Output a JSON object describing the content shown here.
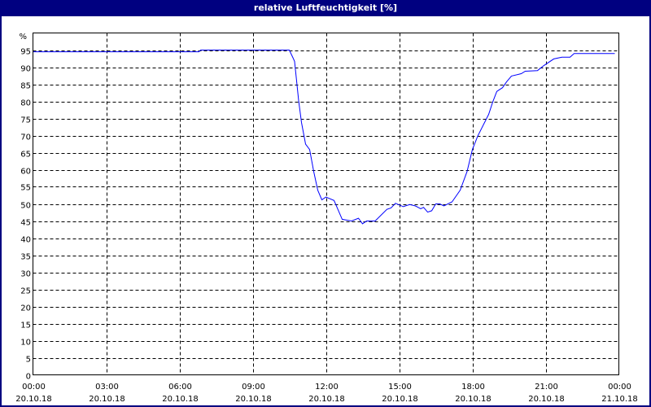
{
  "window": {
    "title": "relative Luftfeuchtigkeit [%]"
  },
  "colors": {
    "title_bar": "#000080",
    "series": "#0000ff",
    "grid": "#000000",
    "background": "#ffffff"
  },
  "chart_data": {
    "type": "line",
    "title": "relative Luftfeuchtigkeit [%]",
    "ylabel": "%",
    "xlabel": "",
    "ylim": [
      0,
      100
    ],
    "xlim": [
      "20.10.18 00:00",
      "21.10.18 00:00"
    ],
    "grid": true,
    "y_ticks": [
      "0",
      "5",
      "10",
      "15",
      "20",
      "25",
      "30",
      "35",
      "40",
      "45",
      "50",
      "55",
      "60",
      "65",
      "70",
      "75",
      "80",
      "85",
      "90",
      "95"
    ],
    "x_ticks": [
      {
        "time": "00:00",
        "date": "20.10.18"
      },
      {
        "time": "03:00",
        "date": "20.10.18"
      },
      {
        "time": "06:00",
        "date": "20.10.18"
      },
      {
        "time": "09:00",
        "date": "20.10.18"
      },
      {
        "time": "12:00",
        "date": "20.10.18"
      },
      {
        "time": "15:00",
        "date": "20.10.18"
      },
      {
        "time": "18:00",
        "date": "20.10.18"
      },
      {
        "time": "21:00",
        "date": "20.10.18"
      },
      {
        "time": "00:00",
        "date": "21.10.18"
      }
    ],
    "series": [
      {
        "x": [
          "00:00",
          "06:48",
          "06:52",
          "10:30",
          "10:40",
          "10:43",
          "10:53",
          "11:00",
          "11:10",
          "11:20",
          "11:30",
          "11:40",
          "11:50",
          "12:00",
          "12:20",
          "12:40",
          "13:03",
          "13:20",
          "13:30",
          "13:40",
          "14:01",
          "14:30",
          "14:40",
          "14:51",
          "15:10",
          "15:26",
          "15:40",
          "15:53",
          "16:00",
          "16:10",
          "16:20",
          "16:30",
          "16:40",
          "16:50",
          "17:10",
          "17:30",
          "17:47",
          "18:00",
          "18:13",
          "18:40",
          "18:50",
          "19:00",
          "19:14",
          "19:24",
          "19:36",
          "20:00",
          "20:10",
          "20:40",
          "20:56",
          "21:20",
          "21:40",
          "22:00",
          "22:10",
          "23:50"
        ],
        "y": [
          94.5,
          94.5,
          95,
          95,
          92.5,
          91.7,
          80.2,
          73.8,
          67.5,
          65.9,
          59.5,
          54,
          51.2,
          52,
          51,
          45.5,
          45,
          45.8,
          44.2,
          45,
          45,
          48.4,
          48.8,
          50.2,
          49.2,
          49.8,
          49.4,
          48.6,
          49,
          47.6,
          48,
          50,
          50,
          49.4,
          50.6,
          54,
          59.5,
          65.9,
          69.8,
          76.2,
          79.8,
          82.9,
          84,
          85.7,
          87.4,
          88.1,
          88.8,
          89,
          90.5,
          92.4,
          92.9,
          92.9,
          94,
          94
        ]
      }
    ]
  }
}
